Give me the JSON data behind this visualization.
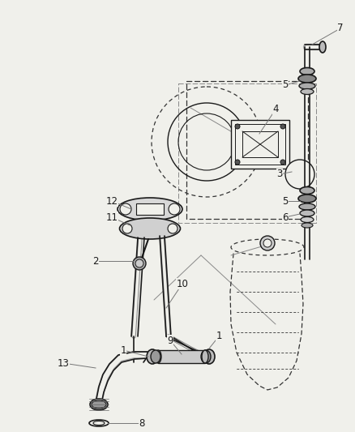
{
  "background_color": "#f0f0eb",
  "line_color": "#1a1a1a",
  "dashed_color": "#333333",
  "figsize": [
    4.38,
    5.33
  ],
  "dpi": 100
}
